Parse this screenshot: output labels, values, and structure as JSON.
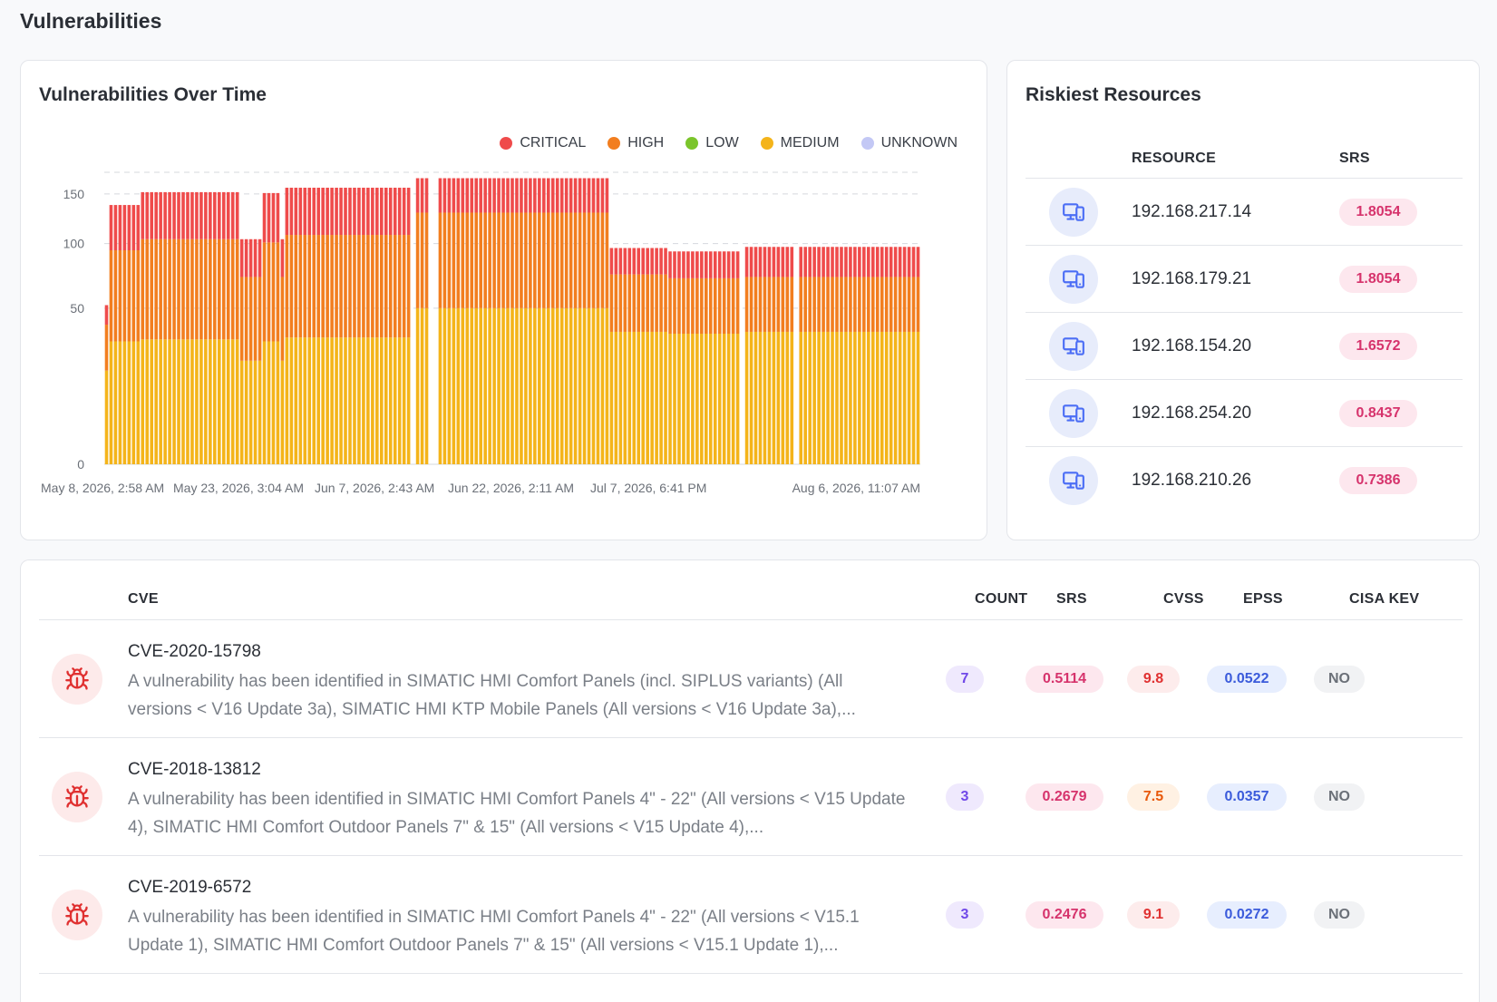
{
  "page": {
    "title": "Vulnerabilities"
  },
  "chart_card": {
    "title": "Vulnerabilities Over Time",
    "legend": [
      {
        "label": "CRITICAL",
        "color": "#ef4b4b"
      },
      {
        "label": "HIGH",
        "color": "#f27e1f"
      },
      {
        "label": "LOW",
        "color": "#7bc52b"
      },
      {
        "label": "MEDIUM",
        "color": "#f4b41a"
      },
      {
        "label": "UNKNOWN",
        "color": "#c3c8f5"
      }
    ]
  },
  "chart_data": {
    "type": "bar",
    "stacked": true,
    "title": "Vulnerabilities Over Time",
    "y_ticks": [
      0,
      50,
      100,
      150
    ],
    "ylim": [
      0,
      175
    ],
    "y_scale": "sqrt",
    "x_ticks": [
      "May 8, 2026, 2:58 AM",
      "May 23, 2026, 3:04 AM",
      "Jun 7, 2026, 2:43 AM",
      "Jun 22, 2026, 2:11 AM",
      "Jul 7, 2026, 6:41 PM",
      "Aug 6, 2026, 11:07 AM"
    ],
    "bar_count": 181,
    "series": [
      {
        "name": "MEDIUM",
        "color": "#f4b41a"
      },
      {
        "name": "HIGH",
        "color": "#f27e1f"
      },
      {
        "name": "CRITICAL",
        "color": "#ef4b4b"
      }
    ],
    "segments": [
      {
        "from": 0,
        "to": 1,
        "medium": 18,
        "high": 22,
        "critical": 12
      },
      {
        "from": 1,
        "to": 8,
        "medium": 31,
        "high": 63,
        "critical": 44
      },
      {
        "from": 8,
        "to": 30,
        "medium": 32,
        "high": 72,
        "critical": 48
      },
      {
        "from": 30,
        "to": 30,
        "gap": true
      },
      {
        "from": 30,
        "to": 35,
        "medium": 22,
        "high": 50,
        "critical": 32
      },
      {
        "from": 35,
        "to": 39,
        "medium": 31,
        "high": 70,
        "critical": 50
      },
      {
        "from": 39,
        "to": 40,
        "medium": 22,
        "high": 50,
        "critical": 32
      },
      {
        "from": 40,
        "to": 68,
        "medium": 33,
        "high": 75,
        "critical": 49
      },
      {
        "from": 68,
        "to": 69,
        "gap": true
      },
      {
        "from": 69,
        "to": 72,
        "medium": 50,
        "high": 80,
        "critical": 38
      },
      {
        "from": 72,
        "to": 74,
        "gap": true
      },
      {
        "from": 74,
        "to": 112,
        "medium": 50,
        "high": 80,
        "critical": 38
      },
      {
        "from": 112,
        "to": 125,
        "medium": 36,
        "high": 38,
        "critical": 22
      },
      {
        "from": 125,
        "to": 141,
        "medium": 35,
        "high": 36,
        "critical": 22
      },
      {
        "from": 141,
        "to": 142,
        "gap": true
      },
      {
        "from": 142,
        "to": 153,
        "medium": 36,
        "high": 36,
        "critical": 25
      },
      {
        "from": 153,
        "to": 154,
        "gap": true
      },
      {
        "from": 154,
        "to": 181,
        "medium": 36,
        "high": 36,
        "critical": 25
      }
    ]
  },
  "risk_card": {
    "title": "Riskiest Resources",
    "col_resource": "RESOURCE",
    "col_srs": "SRS",
    "rows": [
      {
        "ip": "192.168.217.14",
        "srs": "1.8054"
      },
      {
        "ip": "192.168.179.21",
        "srs": "1.8054"
      },
      {
        "ip": "192.168.154.20",
        "srs": "1.6572"
      },
      {
        "ip": "192.168.254.20",
        "srs": "0.8437"
      },
      {
        "ip": "192.168.210.26",
        "srs": "0.7386"
      }
    ]
  },
  "cve_table": {
    "columns": {
      "cve": "CVE",
      "count": "COUNT",
      "srs": "SRS",
      "cvss": "CVSS",
      "epss": "EPSS",
      "kev": "CISA KEV"
    },
    "rows": [
      {
        "id": "CVE-2020-15798",
        "desc": "A vulnerability has been identified in SIMATIC HMI Comfort Panels (incl. SIPLUS variants) (All versions < V16 Update 3a), SIMATIC HMI KTP Mobile Panels (All versions < V16 Update 3a),...",
        "count": "7",
        "srs": "0.5114",
        "cvss": "9.8",
        "cvss_level": "red",
        "epss": "0.0522",
        "kev": "NO"
      },
      {
        "id": "CVE-2018-13812",
        "desc": "A vulnerability has been identified in SIMATIC HMI Comfort Panels 4\" - 22\" (All versions < V15 Update 4), SIMATIC HMI Comfort Outdoor Panels 7\" & 15\" (All versions < V15 Update 4),...",
        "count": "3",
        "srs": "0.2679",
        "cvss": "7.5",
        "cvss_level": "orange",
        "epss": "0.0357",
        "kev": "NO"
      },
      {
        "id": "CVE-2019-6572",
        "desc": "A vulnerability has been identified in SIMATIC HMI Comfort Panels 4\" - 22\" (All versions < V15.1 Update 1), SIMATIC HMI Comfort Outdoor Panels 7\" & 15\" (All versions < V15.1 Update 1),...",
        "count": "3",
        "srs": "0.2476",
        "cvss": "9.1",
        "cvss_level": "red",
        "epss": "0.0272",
        "kev": "NO"
      }
    ]
  }
}
